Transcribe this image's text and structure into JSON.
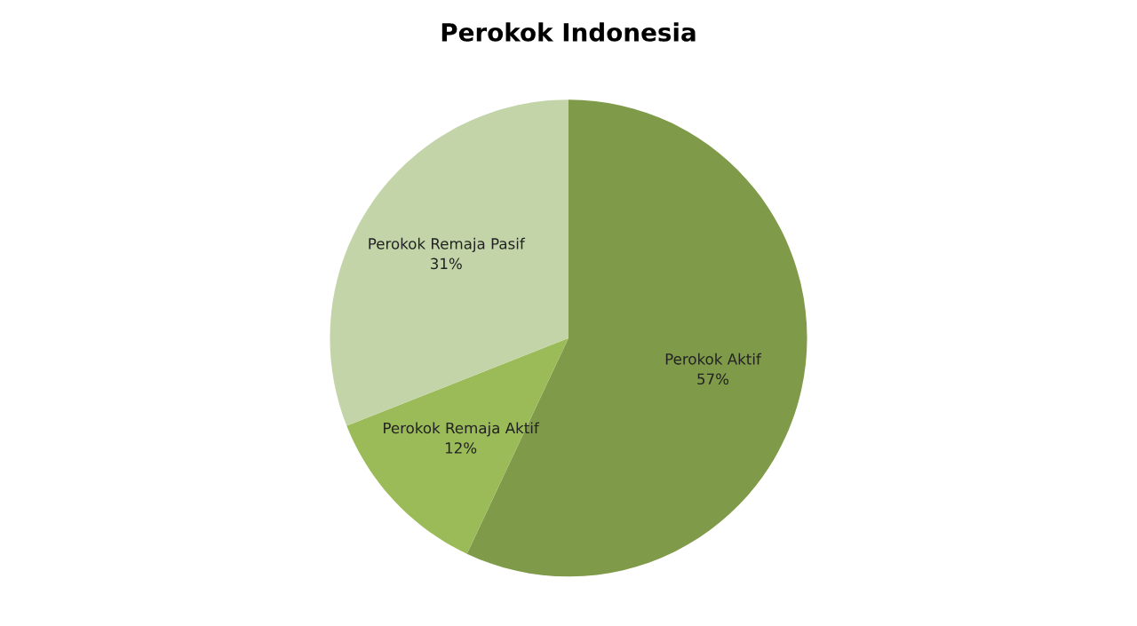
{
  "chart_data": {
    "type": "pie",
    "title": "Perokok Indonesia",
    "categories": [
      "Perokok Aktif",
      "Perokok Remaja Aktif",
      "Perokok Remaja Pasif"
    ],
    "values": [
      57,
      12,
      31
    ],
    "value_labels": [
      "57%",
      "12%",
      "31%"
    ],
    "colors": [
      "#7f9a48",
      "#9bbb59",
      "#c3d5a8"
    ],
    "legend": false
  }
}
